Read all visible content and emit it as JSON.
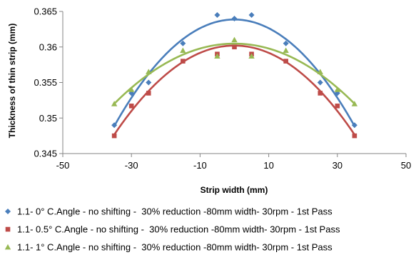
{
  "chart_data": {
    "type": "scatter",
    "xlabel": "Strip width (mm)",
    "ylabel": "Thickness of thin strip (mm)",
    "xlim": [
      -50,
      50
    ],
    "ylim": [
      0.345,
      0.365
    ],
    "xticks": [
      -50,
      -30,
      -10,
      10,
      30,
      50
    ],
    "yticks": [
      0.345,
      0.35,
      0.355,
      0.36,
      0.365
    ],
    "ytick_labels": [
      "0.345",
      "0.35",
      "0.355",
      "0.36",
      "0.365"
    ],
    "grid": false,
    "legend_position": "bottom",
    "series": [
      {
        "name": "1.1- 0° C.Angle - no shifting -  30% reduction -80mm width- 30rpm - 1st Pass",
        "marker": "diamond",
        "color": "#4a7ebb",
        "x": [
          -35,
          -30,
          -25,
          -15,
          -5,
          0,
          5,
          15,
          25,
          30,
          35
        ],
        "y": [
          0.349,
          0.3535,
          0.355,
          0.3605,
          0.3645,
          0.364,
          0.3645,
          0.3605,
          0.355,
          0.3535,
          0.349
        ],
        "trend": "polynomial-2",
        "trend_y": [
          0.349,
          0.3527,
          0.3562,
          0.3611,
          0.3635,
          0.3641,
          0.3635,
          0.3611,
          0.3562,
          0.3527,
          0.349
        ]
      },
      {
        "name": "1.1- 0.5° C.Angle - no shifting -  30% reduction -80mm width- 30rpm - 1st Pass",
        "marker": "square",
        "color": "#be4b48",
        "x": [
          -35,
          -30,
          -25,
          -15,
          -5,
          0,
          5,
          15,
          25,
          30,
          35
        ],
        "y": [
          0.3475,
          0.3517,
          0.3535,
          0.358,
          0.359,
          0.36,
          0.359,
          0.358,
          0.3535,
          0.3517,
          0.3475
        ],
        "trend": "polynomial-2",
        "trend_y": [
          0.3475,
          0.3509,
          0.3542,
          0.3581,
          0.3597,
          0.36,
          0.3597,
          0.3581,
          0.3542,
          0.3509,
          0.3475
        ]
      },
      {
        "name": "1.1- 1° C.Angle - no shifting -  30% reduction -80mm width- 30rpm - 1st Pass",
        "marker": "triangle",
        "color": "#98b954",
        "x": [
          -35,
          -30,
          -25,
          -15,
          -5,
          0,
          5,
          15,
          25,
          30,
          35
        ],
        "y": [
          0.352,
          0.354,
          0.3565,
          0.3595,
          0.3587,
          0.361,
          0.3587,
          0.3595,
          0.3565,
          0.354,
          0.352
        ],
        "trend": "polynomial-2",
        "trend_y": [
          0.352,
          0.3541,
          0.3563,
          0.3593,
          0.3601,
          0.3602,
          0.3601,
          0.3593,
          0.3563,
          0.3541,
          0.352
        ]
      }
    ]
  }
}
